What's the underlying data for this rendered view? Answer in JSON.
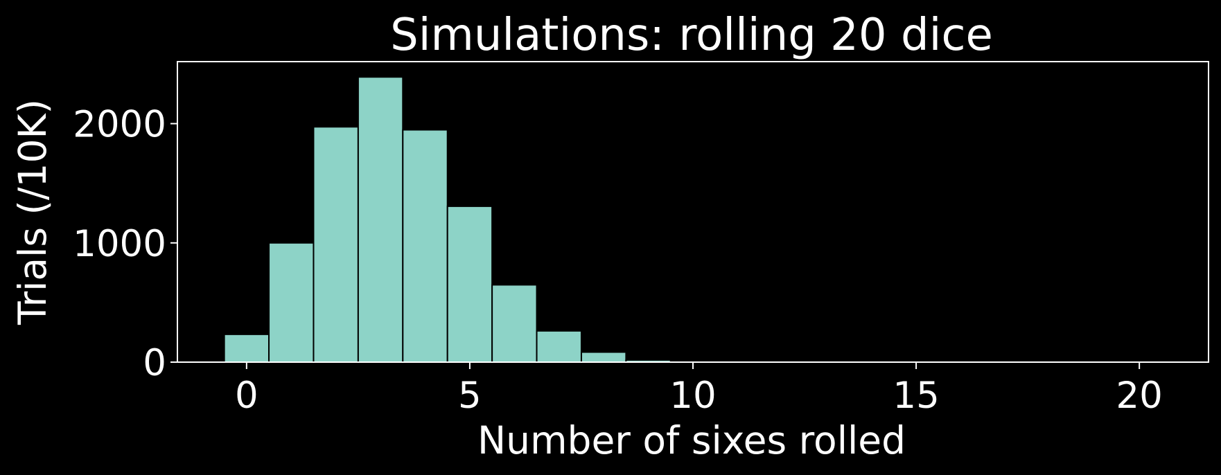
{
  "chart_data": {
    "type": "bar",
    "title": "Simulations: rolling 20 dice",
    "xlabel": "Number of sixes rolled",
    "ylabel": "Trials (/10K)",
    "x": [
      0,
      1,
      2,
      3,
      4,
      5,
      6,
      7,
      8,
      9,
      10
    ],
    "values": [
      233,
      1000,
      1973,
      2391,
      1948,
      1307,
      648,
      262,
      84,
      18,
      3
    ],
    "xlim": [
      -1.55,
      21.55
    ],
    "ylim": [
      0,
      2520
    ],
    "xticks": [
      0,
      5,
      10,
      15,
      20
    ],
    "yticks": [
      0,
      1000,
      2000
    ],
    "bar_width": 1,
    "grid": false,
    "colors": {
      "background": "#000000",
      "bar": "#8dd3c7",
      "bar_edge": "#000000",
      "axis": "#ffffff",
      "text": "#ffffff"
    }
  }
}
